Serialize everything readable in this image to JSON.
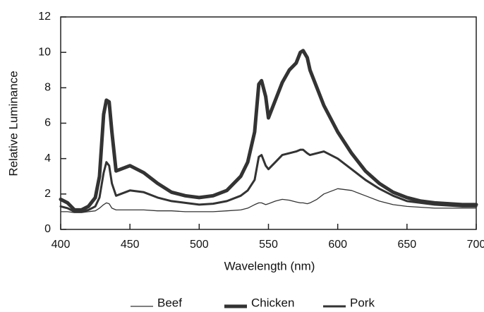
{
  "chart_data": {
    "type": "line",
    "xlabel": "Wavelength (nm)",
    "ylabel": "Relative Luminance",
    "x": [
      400,
      405,
      410,
      415,
      420,
      425,
      428,
      431,
      433,
      435,
      437,
      440,
      450,
      460,
      470,
      480,
      490,
      500,
      510,
      520,
      530,
      535,
      540,
      543,
      545,
      548,
      550,
      555,
      560,
      565,
      570,
      573,
      575,
      578,
      580,
      585,
      590,
      600,
      610,
      620,
      630,
      640,
      650,
      660,
      670,
      680,
      690,
      700
    ],
    "series": [
      {
        "name": "Beef",
        "color": "#333333",
        "values": [
          1.0,
          1.0,
          0.95,
          0.95,
          1.0,
          1.05,
          1.2,
          1.4,
          1.5,
          1.45,
          1.2,
          1.1,
          1.1,
          1.1,
          1.05,
          1.05,
          1.0,
          1.0,
          1.0,
          1.05,
          1.1,
          1.2,
          1.4,
          1.5,
          1.5,
          1.4,
          1.45,
          1.6,
          1.7,
          1.65,
          1.55,
          1.5,
          1.5,
          1.45,
          1.5,
          1.7,
          2.0,
          2.3,
          2.2,
          1.9,
          1.6,
          1.4,
          1.3,
          1.25,
          1.2,
          1.2,
          1.2,
          1.2
        ]
      },
      {
        "name": "Chicken",
        "color": "#333333",
        "values": [
          1.7,
          1.5,
          1.1,
          1.1,
          1.3,
          1.8,
          3.0,
          6.5,
          7.3,
          7.2,
          5.5,
          3.3,
          3.6,
          3.2,
          2.6,
          2.1,
          1.9,
          1.8,
          1.9,
          2.2,
          3.0,
          3.8,
          5.5,
          8.2,
          8.4,
          7.5,
          6.3,
          7.3,
          8.3,
          9.0,
          9.4,
          10.0,
          10.1,
          9.7,
          9.0,
          8.0,
          7.0,
          5.5,
          4.3,
          3.3,
          2.6,
          2.1,
          1.8,
          1.6,
          1.5,
          1.45,
          1.4,
          1.4
        ]
      },
      {
        "name": "Pork",
        "color": "#333333",
        "values": [
          1.3,
          1.2,
          1.0,
          1.0,
          1.1,
          1.3,
          1.8,
          3.2,
          3.8,
          3.6,
          2.6,
          1.9,
          2.2,
          2.1,
          1.8,
          1.6,
          1.5,
          1.4,
          1.45,
          1.6,
          1.9,
          2.2,
          2.8,
          4.1,
          4.2,
          3.6,
          3.4,
          3.8,
          4.2,
          4.3,
          4.4,
          4.5,
          4.5,
          4.3,
          4.2,
          4.3,
          4.4,
          4.0,
          3.4,
          2.8,
          2.3,
          1.9,
          1.6,
          1.5,
          1.4,
          1.35,
          1.3,
          1.3
        ]
      }
    ],
    "xlim": [
      400,
      700
    ],
    "xticks": [
      400,
      450,
      500,
      550,
      600,
      650,
      700
    ],
    "ylim": [
      0,
      12
    ],
    "yticks": [
      0,
      2,
      4,
      6,
      8,
      10,
      12
    ]
  }
}
